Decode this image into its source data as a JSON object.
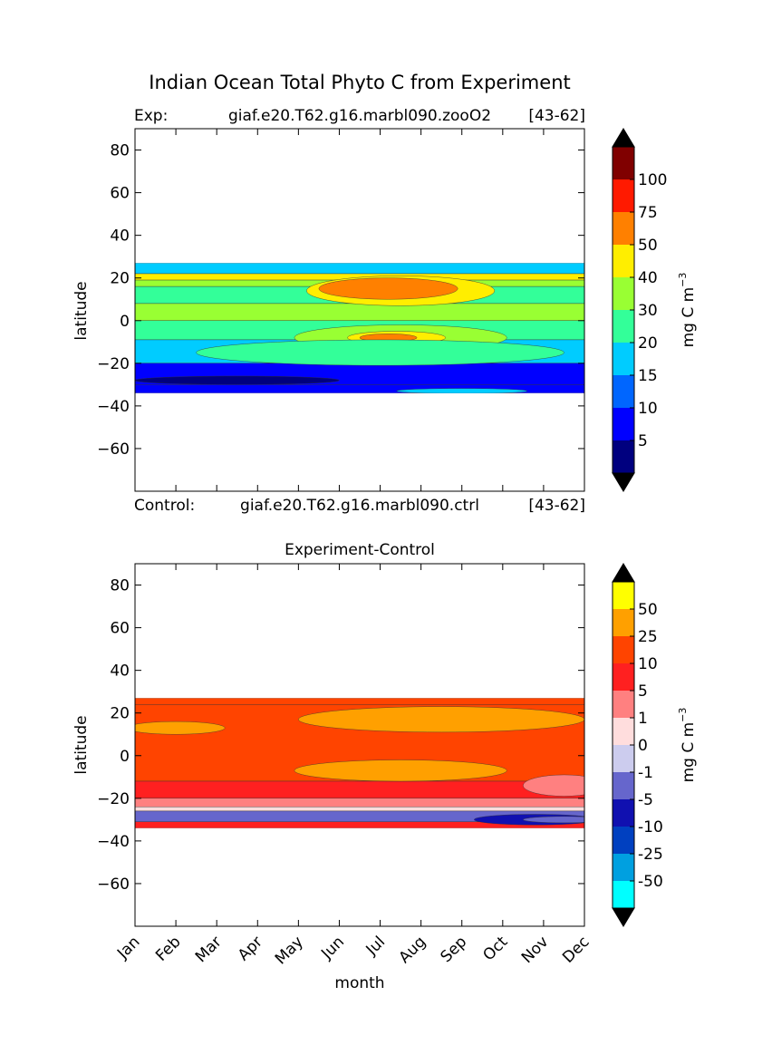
{
  "suptitle": "Indian Ocean Total Phyto C from Experiment",
  "chart_data": [
    {
      "type": "heatmap",
      "panel": "experiment",
      "left_label": "Exp:",
      "center_label": "giaf.e20.T62.g16.marbl090.zooO2",
      "right_label": "[43-62]",
      "bottom_left_label": "Control:",
      "bottom_center_label": "giaf.e20.T62.g16.marbl090.ctrl",
      "bottom_right_label": "[43-62]",
      "ylabel": "latitude",
      "xlim": [
        0,
        11
      ],
      "ylim": [
        -80,
        90
      ],
      "yticks": [
        "80",
        "60",
        "40",
        "20",
        "0",
        "−20",
        "−40",
        "−60"
      ],
      "ytick_values": [
        80,
        60,
        40,
        20,
        0,
        -20,
        -40,
        -60
      ],
      "data_lat_range": [
        -34,
        27
      ],
      "colorbar": {
        "label": "mg C m",
        "label_sup": "−3",
        "levels": [
          "5",
          "10",
          "15",
          "20",
          "30",
          "40",
          "50",
          "75",
          "100"
        ],
        "colors": [
          "#00007f",
          "#0000ff",
          "#0066ff",
          "#00ccff",
          "#33ff99",
          "#99ff33",
          "#ffee00",
          "#ff8000",
          "#ff1a00",
          "#800000"
        ],
        "extend_colors": [
          "#000000",
          "#000000"
        ]
      },
      "bands": [
        {
          "lat": [
            22,
            27
          ],
          "level": 3
        },
        {
          "lat": [
            19,
            22
          ],
          "level": 6
        },
        {
          "lat": [
            16,
            19
          ],
          "level": 5
        },
        {
          "lat": [
            8,
            16
          ],
          "level": 4
        },
        {
          "lat": [
            0,
            8
          ],
          "level": 5
        },
        {
          "lat": [
            -9,
            0
          ],
          "level": 4
        },
        {
          "lat": [
            -20,
            -9
          ],
          "level": 3
        },
        {
          "lat": [
            -30,
            -20
          ],
          "level": 1
        },
        {
          "lat": [
            -34,
            -30
          ],
          "level": 1
        }
      ],
      "features": [
        {
          "month": 6.5,
          "lat": 14,
          "dm": 2.3,
          "dl": 7,
          "level": 6
        },
        {
          "month": 6.2,
          "lat": 15,
          "dm": 1.7,
          "dl": 5,
          "level": 7
        },
        {
          "month": 6.5,
          "lat": -8,
          "dm": 2.6,
          "dl": 6,
          "level": 5
        },
        {
          "month": 6.4,
          "lat": -8,
          "dm": 1.2,
          "dl": 3,
          "level": 6
        },
        {
          "month": 6.2,
          "lat": -8,
          "dm": 0.7,
          "dl": 1.8,
          "level": 7
        },
        {
          "month": 6.0,
          "lat": -15,
          "dm": 4.5,
          "dl": 6,
          "level": 4
        },
        {
          "month": 2.5,
          "lat": -28,
          "dm": 2.5,
          "dl": 2,
          "level": 0
        },
        {
          "month": 8.0,
          "lat": -33,
          "dm": 1.6,
          "dl": 1.2,
          "level": 3
        }
      ]
    },
    {
      "type": "heatmap",
      "panel": "difference",
      "title": "Experiment-Control",
      "xlabel": "month",
      "ylabel": "latitude",
      "xlim": [
        0,
        11
      ],
      "ylim": [
        -80,
        90
      ],
      "categories": [
        "Jan",
        "Feb",
        "Mar",
        "Apr",
        "May",
        "Jun",
        "Jul",
        "Aug",
        "Sep",
        "Oct",
        "Nov",
        "Dec"
      ],
      "yticks": [
        "80",
        "60",
        "40",
        "20",
        "0",
        "−20",
        "−40",
        "−60"
      ],
      "ytick_values": [
        80,
        60,
        40,
        20,
        0,
        -20,
        -40,
        -60
      ],
      "data_lat_range": [
        -34,
        27
      ],
      "colorbar": {
        "label": "mg C m",
        "label_sup": "−3",
        "levels": [
          "-50",
          "-25",
          "-10",
          "-5",
          "-1",
          "0",
          "1",
          "5",
          "10",
          "25",
          "50"
        ],
        "colors": [
          "#00ffff",
          "#00a0e0",
          "#0040c0",
          "#1010b0",
          "#6666cc",
          "#ccccee",
          "#ffdddd",
          "#ff8080",
          "#ff2020",
          "#ff4400",
          "#ffa000",
          "#ffff00"
        ],
        "extend_colors": [
          "#000000",
          "#000000"
        ]
      },
      "bands": [
        {
          "lat": [
            24,
            27
          ],
          "level": 9
        },
        {
          "lat": [
            -12,
            24
          ],
          "level": 9
        },
        {
          "lat": [
            -20,
            -12
          ],
          "level": 8
        },
        {
          "lat": [
            -24,
            -20
          ],
          "level": 7
        },
        {
          "lat": [
            -26,
            -24
          ],
          "level": 6
        },
        {
          "lat": [
            -31,
            -26
          ],
          "level": 4
        },
        {
          "lat": [
            -34,
            -31
          ],
          "level": 8
        }
      ],
      "features": [
        {
          "month": 7.5,
          "lat": 17,
          "dm": 3.5,
          "dl": 6,
          "level": 10
        },
        {
          "month": 6.5,
          "lat": -7,
          "dm": 2.6,
          "dl": 5,
          "level": 10
        },
        {
          "month": 1.0,
          "lat": 13,
          "dm": 1.2,
          "dl": 3,
          "level": 10
        },
        {
          "month": 10.5,
          "lat": -14,
          "dm": 1.0,
          "dl": 5,
          "level": 7
        },
        {
          "month": 9.8,
          "lat": -30,
          "dm": 1.5,
          "dl": 2.5,
          "level": 3
        },
        {
          "month": 10.5,
          "lat": -30,
          "dm": 1.0,
          "dl": 1.5,
          "level": 4
        }
      ]
    }
  ]
}
